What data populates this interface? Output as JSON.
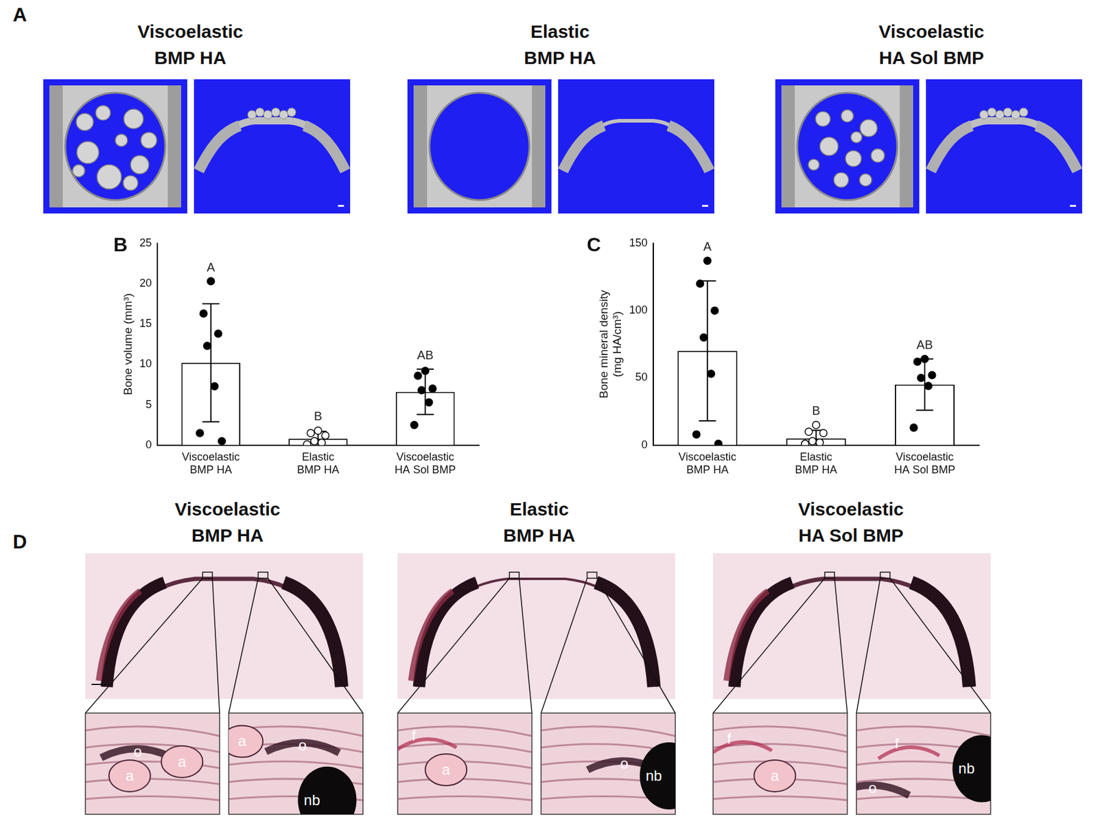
{
  "panel_labels": [
    "A",
    "B",
    "C",
    "D"
  ],
  "groups": [
    [
      "Viscoelastic",
      "BMP HA"
    ],
    [
      "Elastic",
      "BMP HA"
    ],
    [
      "Viscoelastic",
      "HA Sol BMP"
    ]
  ],
  "histology_labels": [
    [
      [
        "o",
        "a",
        "a"
      ],
      [
        "a",
        "o",
        "nb"
      ]
    ],
    [
      [
        "f",
        "a"
      ],
      [
        "o",
        "nb"
      ]
    ],
    [
      [
        "f",
        "a"
      ],
      [
        "f",
        "o",
        "nb"
      ]
    ]
  ],
  "chart_data": [
    {
      "type": "bar",
      "panel": "B",
      "categories": [
        [
          "Viscoelastic",
          "BMP HA"
        ],
        [
          "Elastic",
          "BMP HA"
        ],
        [
          "Viscoelastic",
          "HA Sol BMP"
        ]
      ],
      "values": [
        10.2,
        0.8,
        6.6
      ],
      "errors": [
        7.3,
        0.9,
        2.8
      ],
      "points": [
        [
          20.3,
          16.3,
          13.8,
          12.3,
          7.3,
          1.5,
          0.5
        ],
        [
          1.8,
          1.5,
          1.2,
          0.5,
          0.3,
          0.1
        ],
        [
          9.2,
          8.6,
          7.0,
          6.8,
          5.3,
          2.5
        ]
      ],
      "point_markers": [
        "circle",
        "circle-open",
        "circle"
      ],
      "letters": [
        "A",
        "B",
        "AB"
      ],
      "y_label": "Bone volume (mm³)",
      "ylim": [
        0,
        25
      ],
      "yticks": [
        0,
        5,
        10,
        15,
        20,
        25
      ],
      "color": "#ffffff",
      "grid": false
    },
    {
      "type": "bar",
      "panel": "C",
      "categories": [
        [
          "Viscoelastic",
          "BMP HA"
        ],
        [
          "Elastic",
          "BMP HA"
        ],
        [
          "Viscoelastic",
          "HA Sol BMP"
        ]
      ],
      "values": [
        70,
        5,
        45
      ],
      "errors": [
        52,
        6,
        19
      ],
      "points": [
        [
          137,
          120,
          100,
          80,
          53,
          8,
          1
        ],
        [
          15,
          10,
          9,
          3,
          2,
          1
        ],
        [
          64,
          62,
          52,
          50,
          44,
          13
        ]
      ],
      "point_markers": [
        "circle",
        "circle-open",
        "circle"
      ],
      "letters": [
        "A",
        "B",
        "AB"
      ],
      "y_label": [
        "Bone mineral density",
        "(mg HA/cm³)"
      ],
      "ylim": [
        0,
        150
      ],
      "yticks": [
        0,
        50,
        100,
        150
      ],
      "color": "#ffffff",
      "grid": false
    }
  ]
}
